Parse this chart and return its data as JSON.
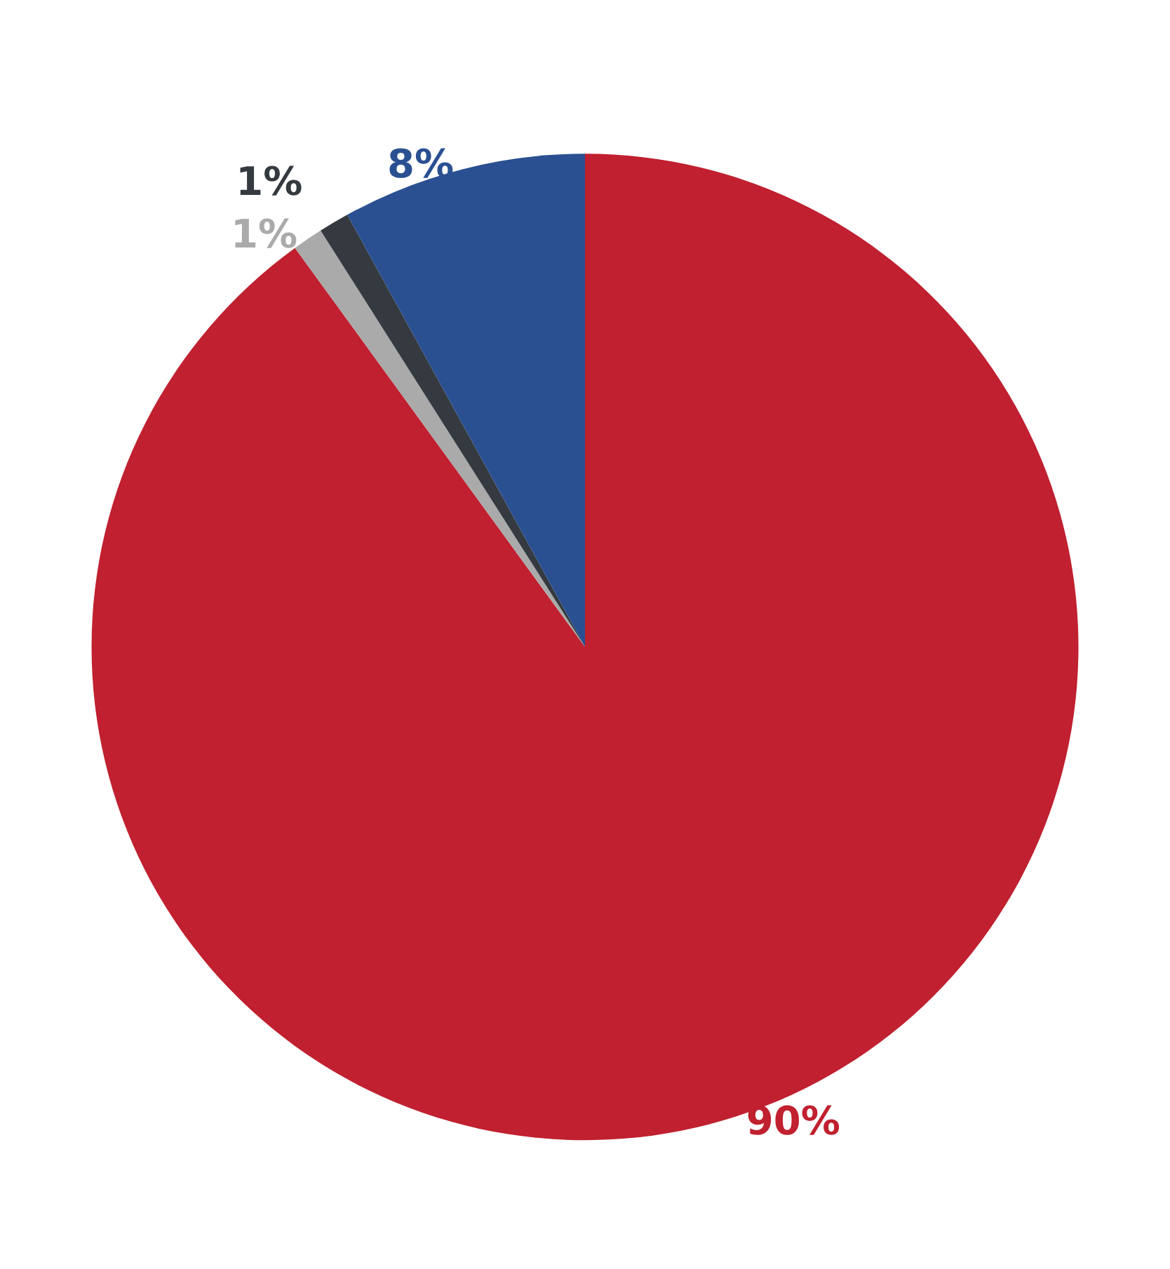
{
  "chart_data": {
    "type": "pie",
    "categories": [
      null,
      null,
      null,
      null
    ],
    "values": [
      90,
      1,
      1,
      8
    ],
    "colors": [
      "#c0202f",
      "#aaaaaa",
      "#343a40",
      "#2a5091"
    ],
    "value_labels": [
      "90%",
      "1%",
      "1%",
      "8%"
    ]
  }
}
